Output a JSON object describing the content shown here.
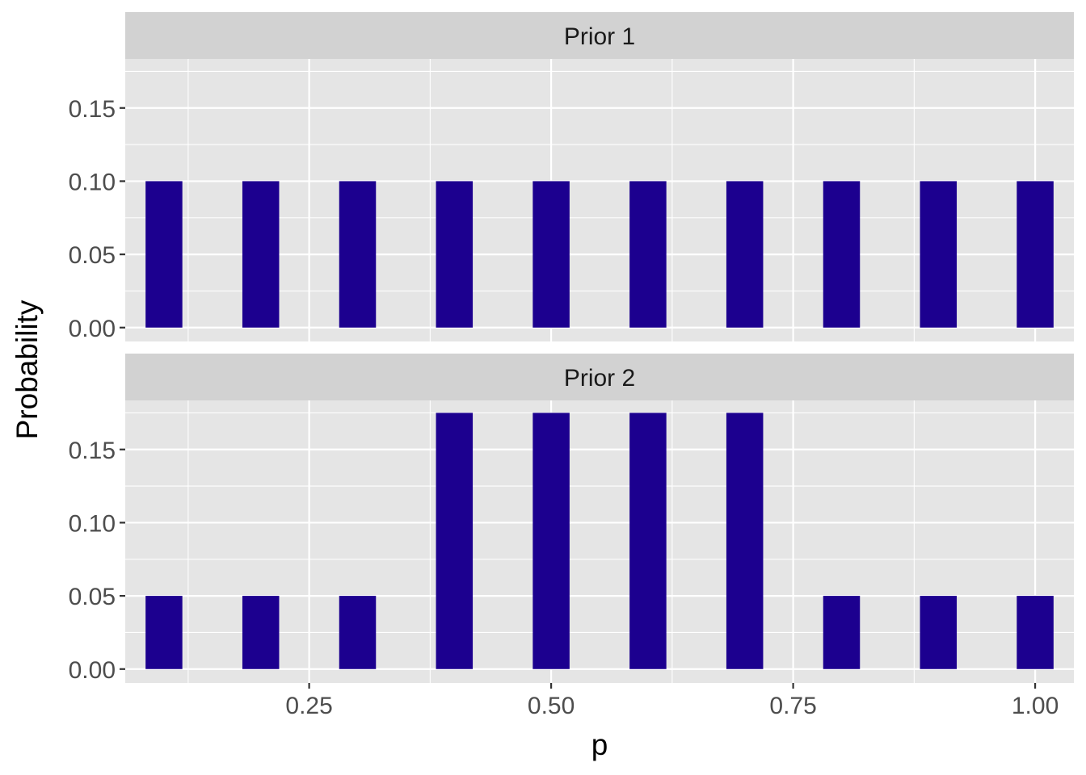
{
  "chart_data": {
    "type": "bar",
    "xlabel": "p",
    "ylabel": "Probability",
    "xlim": [
      0.06,
      1.04
    ],
    "ylim": [
      -0.0095,
      0.1835
    ],
    "x_ticks": [
      0.25,
      0.5,
      0.75,
      1.0
    ],
    "x_tick_labels": [
      "0.25",
      "0.50",
      "0.75",
      "1.00"
    ],
    "y_ticks": [
      0,
      0.05,
      0.1,
      0.15
    ],
    "y_tick_labels": [
      "0.00",
      "0.05",
      "0.10",
      "0.15"
    ],
    "bar_width": 0.038,
    "bar_color": "#1c008f",
    "panel_background": "#e5e5e5",
    "strip_background": "#d2d2d2",
    "grid": true,
    "x": [
      0.1,
      0.2,
      0.3,
      0.4,
      0.5,
      0.6,
      0.7,
      0.8,
      0.9,
      1.0
    ],
    "panels": [
      {
        "strip": "Prior 1",
        "values": [
          0.1,
          0.1,
          0.1,
          0.1,
          0.1,
          0.1,
          0.1,
          0.1,
          0.1,
          0.1
        ]
      },
      {
        "strip": "Prior 2",
        "values": [
          0.05,
          0.05,
          0.05,
          0.175,
          0.175,
          0.175,
          0.175,
          0.05,
          0.05,
          0.05
        ]
      }
    ]
  }
}
